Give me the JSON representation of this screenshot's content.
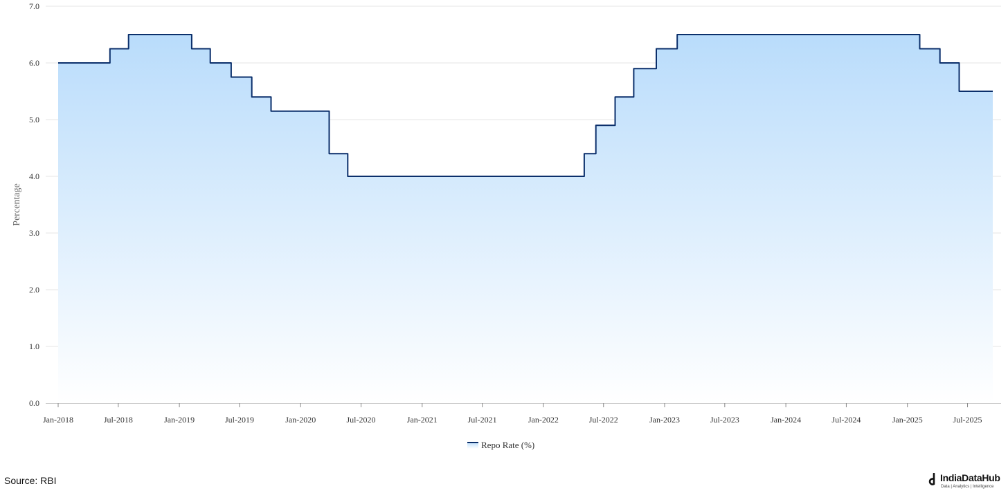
{
  "chart_data": {
    "type": "area",
    "step": true,
    "ylabel": "Percentage",
    "ylim": [
      0,
      7
    ],
    "yticks": [
      "0.0",
      "1.0",
      "2.0",
      "3.0",
      "4.0",
      "5.0",
      "6.0",
      "7.0"
    ],
    "xlim": [
      "2018-01-01",
      "2025-09-15"
    ],
    "xticks": [
      "Jan-2018",
      "Jul-2018",
      "Jan-2019",
      "Jul-2019",
      "Jan-2020",
      "Jul-2020",
      "Jan-2021",
      "Jul-2021",
      "Jan-2022",
      "Jul-2022",
      "Jan-2023",
      "Jul-2023",
      "Jan-2024",
      "Jul-2024",
      "Jan-2025",
      "Jul-2025"
    ],
    "xtick_dates": [
      "2018-01-01",
      "2018-07-01",
      "2019-01-01",
      "2019-07-01",
      "2020-01-01",
      "2020-07-01",
      "2021-01-01",
      "2021-07-01",
      "2022-01-01",
      "2022-07-01",
      "2023-01-01",
      "2023-07-01",
      "2024-01-01",
      "2024-07-01",
      "2025-01-01",
      "2025-07-01"
    ],
    "grid": true,
    "legend_position": "bottom-center",
    "series": [
      {
        "name": "Repo Rate (%)",
        "color": "#0b2f6b",
        "fill_color": "#b9dcfb",
        "points": [
          {
            "x": "2018-01-01",
            "y": 6.0
          },
          {
            "x": "2018-06-06",
            "y": 6.25
          },
          {
            "x": "2018-08-01",
            "y": 6.5
          },
          {
            "x": "2019-02-07",
            "y": 6.25
          },
          {
            "x": "2019-04-04",
            "y": 6.0
          },
          {
            "x": "2019-06-06",
            "y": 5.75
          },
          {
            "x": "2019-08-07",
            "y": 5.4
          },
          {
            "x": "2019-10-04",
            "y": 5.15
          },
          {
            "x": "2020-03-27",
            "y": 4.4
          },
          {
            "x": "2020-05-22",
            "y": 4.0
          },
          {
            "x": "2022-05-04",
            "y": 4.4
          },
          {
            "x": "2022-06-08",
            "y": 4.9
          },
          {
            "x": "2022-08-05",
            "y": 5.4
          },
          {
            "x": "2022-09-30",
            "y": 5.9
          },
          {
            "x": "2022-12-07",
            "y": 6.25
          },
          {
            "x": "2023-02-08",
            "y": 6.5
          },
          {
            "x": "2025-02-07",
            "y": 6.25
          },
          {
            "x": "2025-04-09",
            "y": 6.0
          },
          {
            "x": "2025-06-06",
            "y": 5.5
          },
          {
            "x": "2025-09-15",
            "y": 5.5
          }
        ]
      }
    ]
  },
  "footer": {
    "source": "Source: RBI",
    "brand_name": "IndiaDataHub",
    "brand_tagline": "Data | Analytics | Intelligence"
  }
}
